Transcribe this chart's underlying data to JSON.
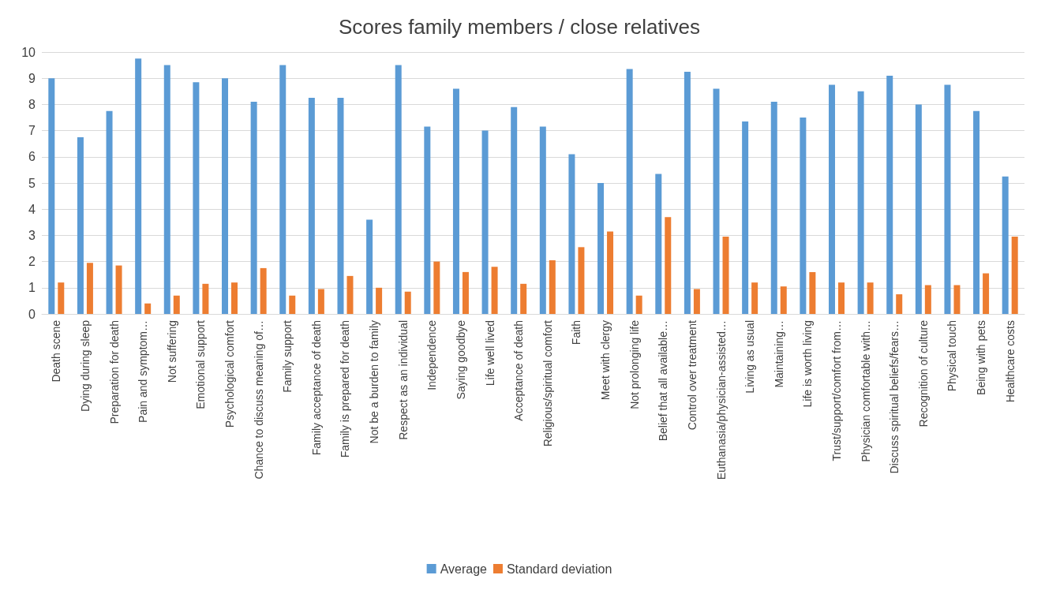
{
  "chart_data": {
    "type": "bar",
    "title": "Scores family members / close relatives",
    "categories": [
      "Death scene",
      "Dying during sleep",
      "Preparation for death",
      "Pain and symptom…",
      "Not suffering",
      "Emotional support",
      "Psychological comfort",
      "Chance to discuss meaning of…",
      "Family support",
      "Family acceptance of death",
      "Family is prepared for death",
      "Not be a burden to family",
      "Respect as an individual",
      "Independence",
      "Saying goodbye",
      "Life well lived",
      "Acceptance of death",
      "Religious/spiritual comfort",
      "Faith",
      "Meet with clergy",
      "Not prolonging life",
      "Belief that all available…",
      "Control over treatment",
      "Euthanasia/physician-assisted…",
      "Living as usual",
      "Maintaining…",
      "Life is worth living",
      "Trust/support/comfort from…",
      "Physician comfortable with…",
      "Discuss spiritual beliefs/fears…",
      "Recognition of culture",
      "Physical touch",
      "Being with pets",
      "Healthcare costs"
    ],
    "series": [
      {
        "name": "Average",
        "color": "#5b9bd5",
        "values": [
          9.0,
          6.75,
          7.75,
          9.75,
          9.5,
          8.85,
          9.0,
          8.1,
          9.5,
          8.25,
          8.25,
          3.6,
          9.5,
          7.15,
          8.6,
          7.0,
          7.9,
          7.15,
          6.1,
          5.0,
          9.35,
          5.35,
          9.25,
          8.6,
          7.35,
          8.1,
          7.5,
          8.75,
          8.5,
          9.1,
          8.0,
          8.75,
          7.75,
          5.25
        ]
      },
      {
        "name": "Standard deviation",
        "color": "#ed7d31",
        "values": [
          1.2,
          1.95,
          1.85,
          0.4,
          0.7,
          1.15,
          1.2,
          1.75,
          0.7,
          0.95,
          1.45,
          1.0,
          0.85,
          2.0,
          1.6,
          1.8,
          1.15,
          2.05,
          2.55,
          3.15,
          0.7,
          3.7,
          0.95,
          2.95,
          1.2,
          1.05,
          1.6,
          1.2,
          1.2,
          0.75,
          1.1,
          1.1,
          1.55,
          2.95
        ]
      }
    ],
    "ylim": [
      0,
      10
    ],
    "yticks": [
      0,
      1,
      2,
      3,
      4,
      5,
      6,
      7,
      8,
      9,
      10
    ],
    "grid": "y",
    "legend": "bottom"
  }
}
